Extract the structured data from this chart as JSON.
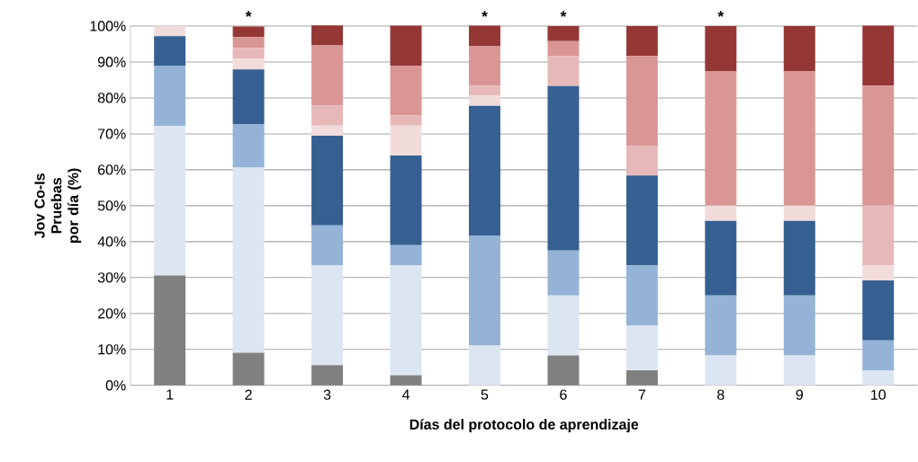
{
  "chart_data": {
    "type": "bar",
    "stacked": true,
    "xlabel": "Días del protocolo de aprendizaje",
    "ylabel": "Jov Co-Is\nPruebas por día (%)",
    "categories": [
      "1",
      "2",
      "3",
      "4",
      "5",
      "6",
      "7",
      "8",
      "9",
      "10"
    ],
    "series": [
      {
        "color": "#808080",
        "values": [
          30.6,
          9.1,
          5.6,
          2.8,
          0,
          8.3,
          4.2,
          0,
          0,
          0
        ]
      },
      {
        "color": "#dce6f2",
        "values": [
          41.6,
          51.5,
          27.8,
          30.6,
          11.1,
          16.7,
          12.5,
          8.3,
          8.3,
          4.2
        ]
      },
      {
        "color": "#95b3d7",
        "values": [
          16.8,
          12.1,
          11.1,
          5.6,
          30.6,
          12.5,
          16.7,
          16.7,
          16.7,
          8.3
        ]
      },
      {
        "color": "#366092",
        "values": [
          8.2,
          15.2,
          25,
          25,
          36.1,
          45.8,
          25,
          20.8,
          20.8,
          16.7
        ]
      },
      {
        "color": "#f2dcdb",
        "values": [
          2.8,
          3.0,
          2.8,
          8.3,
          2.8,
          0,
          0,
          4.2,
          4.2,
          4.2
        ]
      },
      {
        "color": "#e6b9b8",
        "values": [
          0,
          3.0,
          5.6,
          2.8,
          2.8,
          8.3,
          8.3,
          0,
          0,
          16.7
        ]
      },
      {
        "color": "#d99694",
        "values": [
          0,
          3.0,
          16.7,
          13.9,
          11.1,
          4.2,
          25,
          37.5,
          37.5,
          33.3
        ]
      },
      {
        "color": "#953735",
        "values": [
          0,
          3.0,
          5.6,
          11.1,
          5.6,
          4.2,
          8.3,
          12.5,
          12.5,
          16.7
        ]
      }
    ],
    "ylim": [
      0,
      100
    ],
    "yticks": [
      {
        "value": 0,
        "label": "0%"
      },
      {
        "value": 10,
        "label": "10%"
      },
      {
        "value": 20,
        "label": "20%"
      },
      {
        "value": 30,
        "label": "30%"
      },
      {
        "value": 40,
        "label": "40%"
      },
      {
        "value": 50,
        "label": "50%"
      },
      {
        "value": 60,
        "label": "60%"
      },
      {
        "value": 70,
        "label": "70%"
      },
      {
        "value": 80,
        "label": "80%"
      },
      {
        "value": 90,
        "label": "90%"
      },
      {
        "value": 100,
        "label": "100%"
      }
    ],
    "grid": "y",
    "annotations": [
      {
        "text": "*",
        "x": "2",
        "y": 100
      },
      {
        "text": "*",
        "x": "5",
        "y": 100
      },
      {
        "text": "*",
        "x": "6",
        "y": 100
      },
      {
        "text": "*",
        "x": "8",
        "y": 100
      }
    ]
  }
}
